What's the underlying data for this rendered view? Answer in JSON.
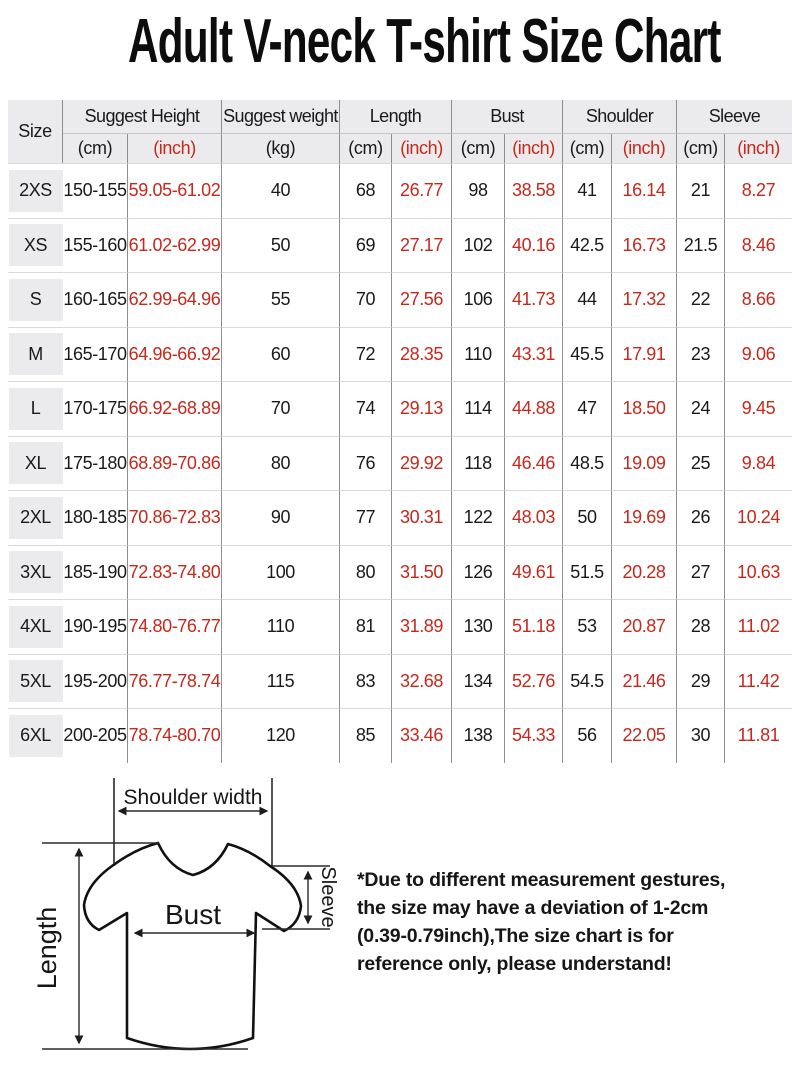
{
  "title": "Adult V-neck T-shirt Size Chart",
  "colors": {
    "accent_red": "#c5281d",
    "header_bg": "#ebebed",
    "grid_line_dark": "#8e8e91",
    "grid_line_light": "#dadadd",
    "text": "#1a1a1a"
  },
  "table": {
    "size_label": "Size",
    "groups": [
      {
        "label": "Suggest Height"
      },
      {
        "label": "Suggest weight"
      },
      {
        "label": "Length"
      },
      {
        "label": "Bust"
      },
      {
        "label": "Shoulder"
      },
      {
        "label": "Sleeve"
      }
    ],
    "units": [
      "(cm)",
      "(inch)",
      "(kg)",
      "(cm)",
      "(inch)",
      "(cm)",
      "(inch)",
      "(cm)",
      "(inch)",
      "(cm)",
      "(inch)"
    ],
    "rows": [
      {
        "size": "2XS",
        "values": [
          "150-155",
          "59.05-61.02",
          "40",
          "68",
          "26.77",
          "98",
          "38.58",
          "41",
          "16.14",
          "21",
          "8.27"
        ]
      },
      {
        "size": "XS",
        "values": [
          "155-160",
          "61.02-62.99",
          "50",
          "69",
          "27.17",
          "102",
          "40.16",
          "42.5",
          "16.73",
          "21.5",
          "8.46"
        ]
      },
      {
        "size": "S",
        "values": [
          "160-165",
          "62.99-64.96",
          "55",
          "70",
          "27.56",
          "106",
          "41.73",
          "44",
          "17.32",
          "22",
          "8.66"
        ]
      },
      {
        "size": "M",
        "values": [
          "165-170",
          "64.96-66.92",
          "60",
          "72",
          "28.35",
          "110",
          "43.31",
          "45.5",
          "17.91",
          "23",
          "9.06"
        ]
      },
      {
        "size": "L",
        "values": [
          "170-175",
          "66.92-68.89",
          "70",
          "74",
          "29.13",
          "114",
          "44.88",
          "47",
          "18.50",
          "24",
          "9.45"
        ]
      },
      {
        "size": "XL",
        "values": [
          "175-180",
          "68.89-70.86",
          "80",
          "76",
          "29.92",
          "118",
          "46.46",
          "48.5",
          "19.09",
          "25",
          "9.84"
        ]
      },
      {
        "size": "2XL",
        "values": [
          "180-185",
          "70.86-72.83",
          "90",
          "77",
          "30.31",
          "122",
          "48.03",
          "50",
          "19.69",
          "26",
          "10.24"
        ]
      },
      {
        "size": "3XL",
        "values": [
          "185-190",
          "72.83-74.80",
          "100",
          "80",
          "31.50",
          "126",
          "49.61",
          "51.5",
          "20.28",
          "27",
          "10.63"
        ]
      },
      {
        "size": "4XL",
        "values": [
          "190-195",
          "74.80-76.77",
          "110",
          "81",
          "31.89",
          "130",
          "51.18",
          "53",
          "20.87",
          "28",
          "11.02"
        ]
      },
      {
        "size": "5XL",
        "values": [
          "195-200",
          "76.77-78.74",
          "115",
          "83",
          "32.68",
          "134",
          "52.76",
          "54.5",
          "21.46",
          "29",
          "11.42"
        ]
      },
      {
        "size": "6XL",
        "values": [
          "200-205",
          "78.74-80.70",
          "120",
          "85",
          "33.46",
          "138",
          "54.33",
          "56",
          "22.05",
          "30",
          "11.81"
        ]
      }
    ],
    "red_value_columns": [
      1,
      4,
      6,
      8,
      10
    ]
  },
  "diagram": {
    "labels": {
      "shoulder_width": "Shoulder width",
      "length": "Length",
      "bust": "Bust",
      "sleeve": "Sleeve"
    }
  },
  "note": {
    "lines": [
      "*Due to different measurement gestures,",
      "the size may have a deviation of 1-2cm",
      "(0.39-0.79inch),The size chart is for",
      "reference only, please understand!"
    ]
  }
}
